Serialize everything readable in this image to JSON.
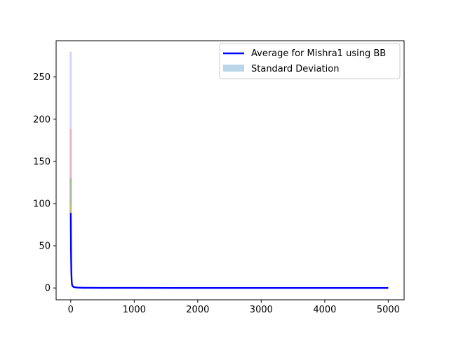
{
  "chart_data": {
    "type": "line",
    "title": "",
    "xlabel": "",
    "ylabel": "",
    "xlim": [
      -230,
      5250
    ],
    "ylim": [
      -14,
      293
    ],
    "xticks": [
      0,
      1000,
      2000,
      3000,
      4000,
      5000
    ],
    "yticks": [
      0,
      50,
      100,
      150,
      200,
      250
    ],
    "grid": false,
    "legend_position": "top-right",
    "series": [
      {
        "name": "Average for Mishra1 using BB",
        "color": "#0000ff",
        "x": [
          0,
          5,
          10,
          15,
          20,
          30,
          50,
          100,
          200,
          500,
          1000,
          2000,
          3000,
          4000,
          5000
        ],
        "y": [
          89,
          40,
          18,
          8,
          4,
          2,
          1,
          0.5,
          0.2,
          0.1,
          0.05,
          0.02,
          0.01,
          0.01,
          0.01
        ]
      }
    ],
    "std_band": {
      "name": "Standard Deviation",
      "color": "#1f77b4",
      "spikes": [
        {
          "x": 0,
          "y_low": 89,
          "y_high": 280,
          "color": "#b0b0ff"
        },
        {
          "x": 0,
          "y_low": 89,
          "y_high": 188,
          "color": "#ff9999"
        },
        {
          "x": 0,
          "y_low": 89,
          "y_high": 130,
          "color": "#7fbf7f"
        },
        {
          "x": 0,
          "y_low": 89,
          "y_high": 100,
          "color": "#d4c25a"
        }
      ]
    }
  }
}
